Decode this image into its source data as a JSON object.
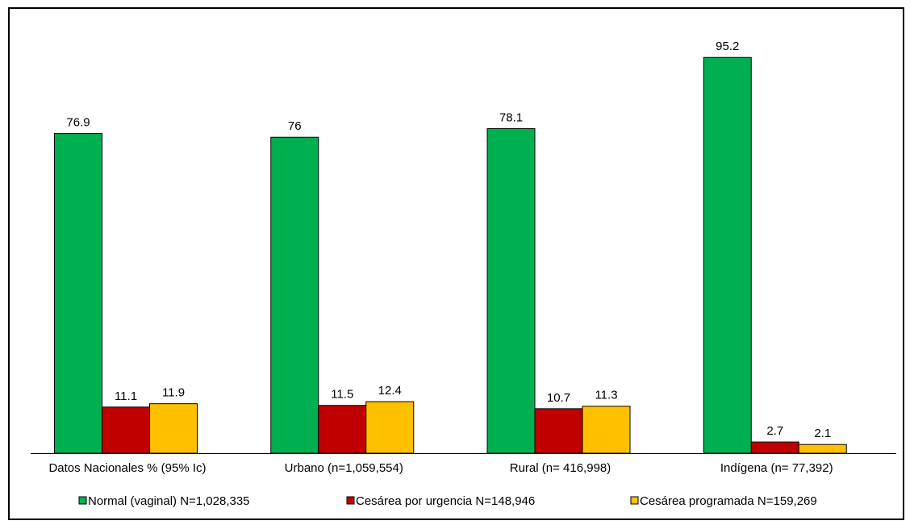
{
  "chart_data": {
    "type": "bar",
    "categories": [
      "Datos Nacionales % (95% Ic)",
      "Urbano (n=1,059,554)",
      "Rural (n= 416,998)",
      "Indígena (n= 77,392)"
    ],
    "series": [
      {
        "name": "Normal (vaginal) N=1,028,335",
        "color": "#00b050",
        "values": [
          76.9,
          76,
          78.1,
          95.2
        ],
        "labels": [
          "76.9",
          "76",
          "78.1",
          "95.2"
        ]
      },
      {
        "name": "Cesárea por urgencia N=148,946",
        "color": "#c00000",
        "values": [
          11.1,
          11.5,
          10.7,
          2.7
        ],
        "labels": [
          "11.1",
          "11.5",
          "10.7",
          "2.7"
        ]
      },
      {
        "name": "Cesárea programada N=159,269",
        "color": "#ffc000",
        "values": [
          11.9,
          12.4,
          11.3,
          2.1
        ],
        "labels": [
          "11.9",
          "12.4",
          "11.3",
          "2.1"
        ]
      }
    ],
    "ylim": [
      0,
      100
    ],
    "grid": false,
    "legend_position": "bottom"
  }
}
